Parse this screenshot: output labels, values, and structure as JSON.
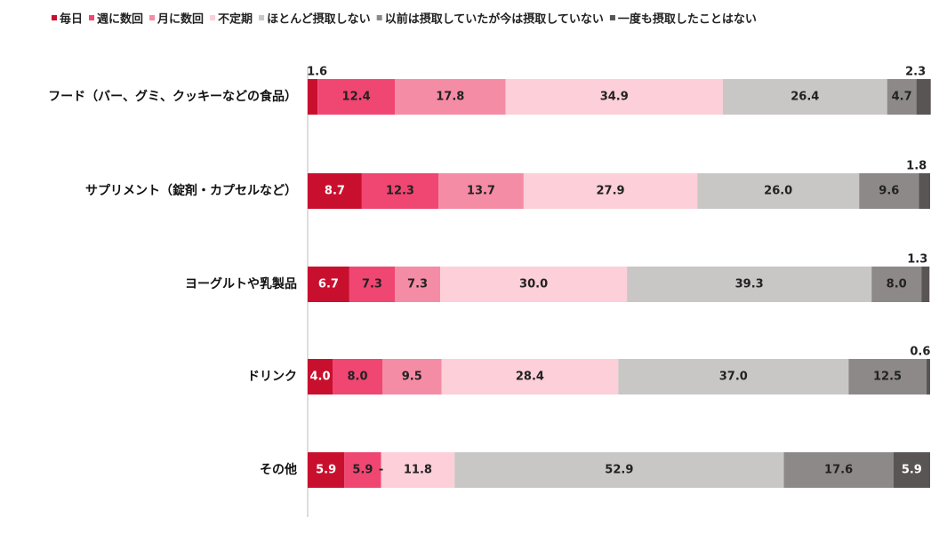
{
  "chart_data": {
    "type": "bar",
    "orientation": "horizontal",
    "stacked": true,
    "unit": "%",
    "title": "",
    "xlabel": "",
    "ylabel": "",
    "xlim": [
      0,
      100
    ],
    "grid": false,
    "legend_position": "top",
    "categories": [
      "フード（バー、グミ、クッキーなどの食品）",
      "サプリメント（錠剤・カプセルなど）",
      "ヨーグルトや乳製品",
      "ドリンク",
      "その他"
    ],
    "series": [
      {
        "name": "毎日",
        "color": "#C8102E",
        "values": [
          1.6,
          8.7,
          6.7,
          4.0,
          5.9
        ],
        "labels": [
          "1.6",
          "8.7",
          "6.7",
          "4.0",
          "5.9"
        ]
      },
      {
        "name": "週に数回",
        "color": "#F04672",
        "values": [
          12.4,
          12.3,
          7.3,
          8.0,
          5.9
        ],
        "labels": [
          "12.4",
          "12.3",
          "7.3",
          "8.0",
          "5.9"
        ]
      },
      {
        "name": "月に数回",
        "color": "#F58CA5",
        "values": [
          17.8,
          13.7,
          7.3,
          9.5,
          0.0
        ],
        "labels": [
          "17.8",
          "13.7",
          "7.3",
          "9.5",
          "-"
        ]
      },
      {
        "name": "不定期",
        "color": "#FCCFD9",
        "values": [
          34.9,
          27.9,
          30.0,
          28.4,
          11.8
        ],
        "labels": [
          "34.9",
          "27.9",
          "30.0",
          "28.4",
          "11.8"
        ]
      },
      {
        "name": "ほとんど摂取しない",
        "color": "#C9C6C6",
        "values": [
          26.4,
          26.0,
          39.3,
          37.0,
          52.9
        ],
        "labels": [
          "26.4",
          "26.0",
          "39.3",
          "37.0",
          "52.9"
        ]
      },
      {
        "name": "以前は摂取していたが今は摂取していない",
        "color": "#8D8989",
        "values": [
          4.7,
          9.6,
          8.0,
          12.5,
          17.6
        ],
        "labels": [
          "4.7",
          "9.6",
          "8.0",
          "12.5",
          "17.6"
        ]
      },
      {
        "name": "一度も摂取したことはない",
        "color": "#5A5555",
        "values": [
          2.3,
          1.8,
          1.3,
          0.6,
          5.9
        ],
        "labels": [
          "2.3",
          "1.8",
          "1.3",
          "0.6",
          "5.9"
        ]
      }
    ]
  }
}
